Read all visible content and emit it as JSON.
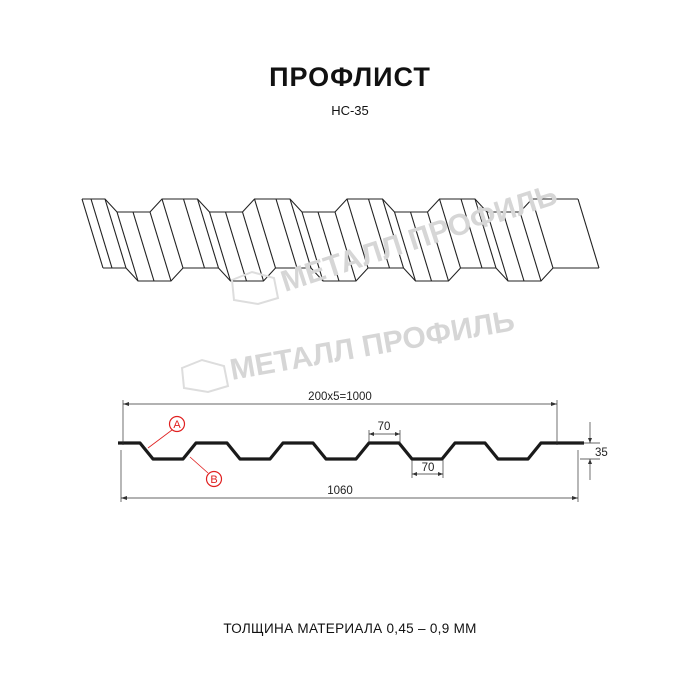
{
  "title": "ПРОФЛИСТ",
  "subtitle": "НС-35",
  "watermark": "МЕТАЛЛ ПРОФИЛЬ",
  "dimensions": {
    "pitch_total": "200x5=1000",
    "top_width": "70",
    "bottom_width": "70",
    "height": "35",
    "total_width": "1060"
  },
  "callouts": {
    "a": "A",
    "b": "B"
  },
  "footer": "ТОЛЩИНА МАТЕРИАЛА 0,45 – 0,9 ММ",
  "colors": {
    "profile": "#1a1a1a",
    "callout": "#e02020",
    "watermark": "#d6d6d6"
  }
}
